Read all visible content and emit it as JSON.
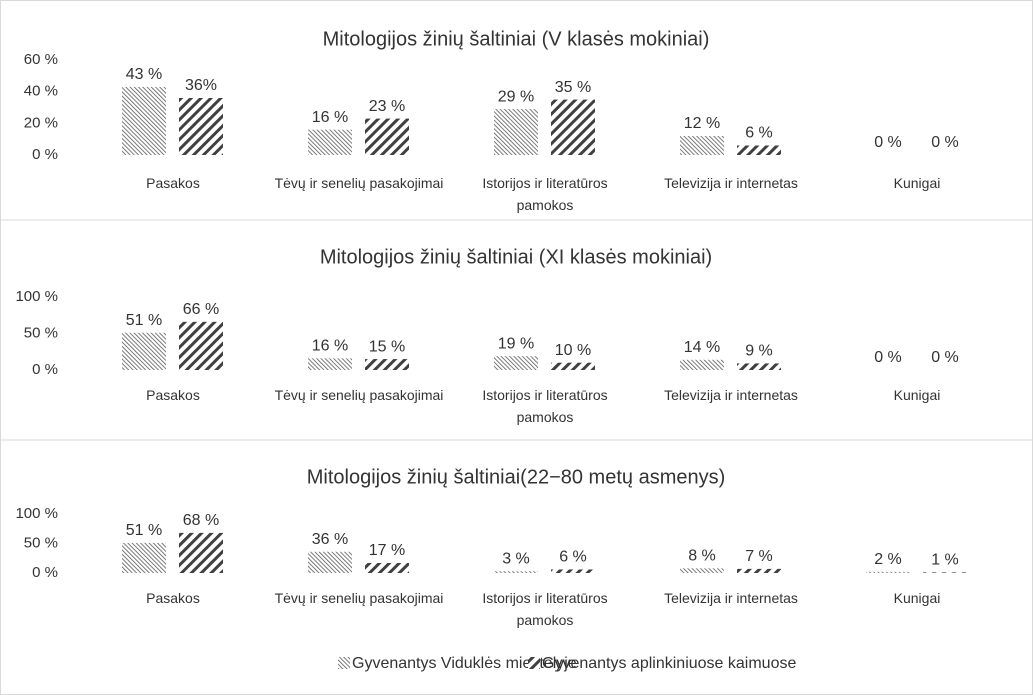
{
  "chart_data": [
    {
      "type": "bar",
      "title": "Mitologijos žinių šaltiniai (V klasės mokiniai)",
      "categories": [
        "Pasakos",
        "Tėvų ir senelių pasakojimai",
        "Istorijos ir literatūros pamokos",
        "Televizija ir internetas",
        "Kunigai"
      ],
      "series": [
        {
          "color": "#595959",
          "pattern": "dense-backslash",
          "values": [
            43,
            16,
            29,
            12,
            0
          ],
          "value_labels": [
            "43 %",
            "16 %",
            "29 %",
            "12 %",
            "0 %"
          ]
        },
        {
          "color": "#404040",
          "pattern": "wide-slash",
          "values": [
            36,
            23,
            35,
            6,
            0
          ],
          "value_labels": [
            "36%",
            "23 %",
            "35 %",
            "6 %",
            "0 %"
          ]
        }
      ],
      "ylim": [
        0,
        60
      ],
      "yticks": [
        {
          "value": 0,
          "label": "0 %"
        },
        {
          "value": 20,
          "label": "20 %"
        },
        {
          "value": 40,
          "label": "40 %"
        },
        {
          "value": 60,
          "label": "60 %"
        }
      ],
      "grid": false
    },
    {
      "type": "bar",
      "title": "Mitologijos žinių šaltiniai (XI klasės mokiniai)",
      "categories": [
        "Pasakos",
        "Tėvų ir senelių pasakojimai",
        "Istorijos ir literatūros pamokos",
        "Televizija ir internetas",
        "Kunigai"
      ],
      "series": [
        {
          "color": "#595959",
          "pattern": "dense-backslash",
          "values": [
            51,
            16,
            19,
            14,
            0
          ],
          "value_labels": [
            "51 %",
            "16 %",
            "19 %",
            "14 %",
            "0 %"
          ]
        },
        {
          "color": "#404040",
          "pattern": "wide-slash",
          "values": [
            66,
            15,
            10,
            9,
            0
          ],
          "value_labels": [
            "66 %",
            "15 %",
            "10 %",
            "9 %",
            "0 %"
          ]
        }
      ],
      "ylim": [
        0,
        100
      ],
      "yticks": [
        {
          "value": 0,
          "label": "0 %"
        },
        {
          "value": 50,
          "label": "50 %"
        },
        {
          "value": 100,
          "label": "100 %"
        }
      ],
      "grid": false
    },
    {
      "type": "bar",
      "title": "Mitologijos žinių šaltiniai(22−80 metų asmenys)",
      "categories": [
        "Pasakos",
        "Tėvų ir senelių pasakojimai",
        "Istorijos ir literatūros pamokos",
        "Televizija ir internetas",
        "Kunigai"
      ],
      "series": [
        {
          "name": "Gyvenantys Viduklės miestelyje",
          "color": "#595959",
          "pattern": "dense-backslash",
          "values": [
            51,
            36,
            3,
            8,
            2
          ],
          "value_labels": [
            "51 %",
            "36 %",
            "3 %",
            "8 %",
            "2 %"
          ]
        },
        {
          "name": "Gyvenantys aplinkiniuose kaimuose",
          "color": "#404040",
          "pattern": "wide-slash",
          "values": [
            68,
            17,
            6,
            7,
            1
          ],
          "value_labels": [
            "68 %",
            "17 %",
            "6 %",
            "7 %",
            "1 %"
          ]
        }
      ],
      "ylim": [
        0,
        100
      ],
      "yticks": [
        {
          "value": 0,
          "label": "0 %"
        },
        {
          "value": 50,
          "label": "50 %"
        },
        {
          "value": 100,
          "label": "100 %"
        }
      ],
      "grid": false,
      "legend": "bottom"
    }
  ]
}
